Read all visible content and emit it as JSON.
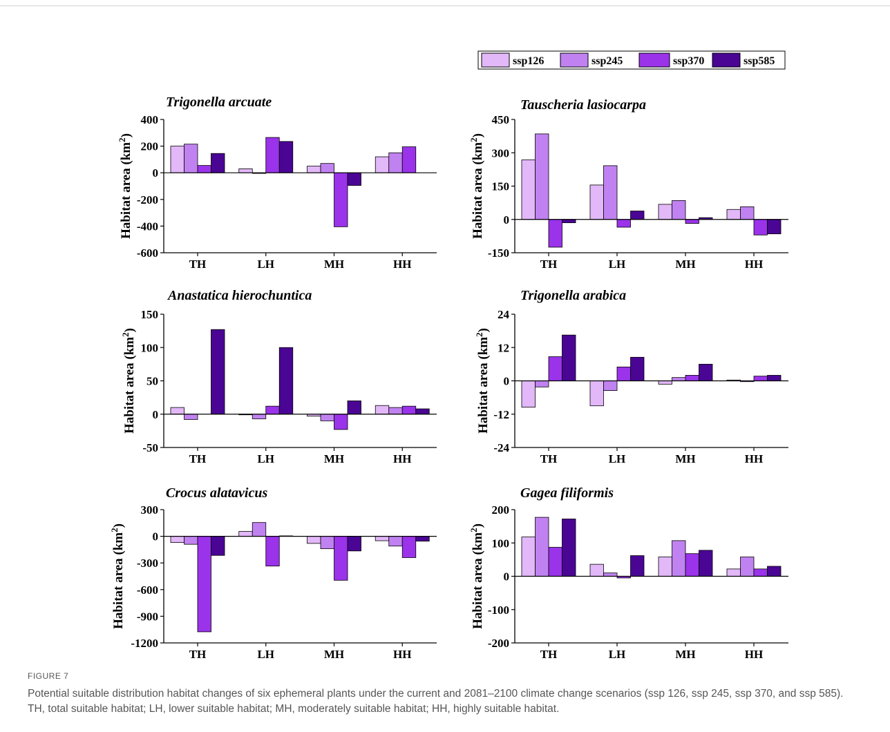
{
  "figure": {
    "label": "FIGURE 7",
    "caption": "Potential suitable distribution habitat changes of six ephemeral plants under the current and 2081–2100 climate change scenarios (ssp 126, ssp 245, ssp 370, and ssp 585). TH, total suitable habitat; LH, lower suitable habitat; MH, moderately suitable habitat; HH, highly suitable habitat."
  },
  "legend": [
    {
      "name": "ssp126",
      "color": "#E2B8F8"
    },
    {
      "name": "ssp245",
      "color": "#C082F0"
    },
    {
      "name": "ssp370",
      "color": "#9A33EA"
    },
    {
      "name": "ssp585",
      "color": "#4A0595"
    }
  ],
  "ylabel_main": "Habitat area (km",
  "ylabel_sup": "2",
  "ylabel_close": ")",
  "chart_data": [
    {
      "type": "bar",
      "title": "Trigonella arcuate",
      "categories": [
        "TH",
        "LH",
        "MH",
        "HH"
      ],
      "ylim": [
        -600,
        400
      ],
      "yticks": [
        -600,
        -400,
        -200,
        0,
        200,
        400
      ],
      "ytick_labels": [
        "-600",
        "-400",
        "-200",
        "0",
        "200",
        "400"
      ],
      "series": [
        {
          "name": "ssp126",
          "values": [
            200,
            30,
            50,
            120
          ]
        },
        {
          "name": "ssp245",
          "values": [
            215,
            -5,
            70,
            150
          ]
        },
        {
          "name": "ssp370",
          "values": [
            55,
            265,
            -405,
            195
          ]
        },
        {
          "name": "ssp585",
          "values": [
            145,
            235,
            -95,
            0
          ]
        }
      ]
    },
    {
      "type": "bar",
      "title": "Tauscheria lasiocarpa",
      "categories": [
        "TH",
        "LH",
        "MH",
        "HH"
      ],
      "ylim": [
        -150,
        450
      ],
      "yticks": [
        -150,
        0,
        150,
        300,
        450
      ],
      "ytick_labels": [
        "-150",
        "0",
        "150",
        "300",
        "450"
      ],
      "series": [
        {
          "name": "ssp126",
          "values": [
            268,
            155,
            68,
            45
          ]
        },
        {
          "name": "ssp245",
          "values": [
            385,
            242,
            85,
            57
          ]
        },
        {
          "name": "ssp370",
          "values": [
            -125,
            -35,
            -18,
            -70
          ]
        },
        {
          "name": "ssp585",
          "values": [
            -15,
            38,
            8,
            -65
          ]
        }
      ]
    },
    {
      "type": "bar",
      "title": "Anastatica hierochuntica",
      "categories": [
        "TH",
        "LH",
        "MH",
        "HH"
      ],
      "ylim": [
        -50,
        150
      ],
      "yticks": [
        -50,
        0,
        50,
        100,
        150
      ],
      "ytick_labels": [
        "-50",
        "0",
        "50",
        "100",
        "150"
      ],
      "series": [
        {
          "name": "ssp126",
          "values": [
            10,
            -1,
            -3,
            13
          ]
        },
        {
          "name": "ssp245",
          "values": [
            -8,
            -7,
            -10,
            10
          ]
        },
        {
          "name": "ssp370",
          "values": [
            0,
            12,
            -23,
            12
          ]
        },
        {
          "name": "ssp585",
          "values": [
            127,
            100,
            20,
            8
          ]
        }
      ]
    },
    {
      "type": "bar",
      "title": "Trigonella arabica",
      "categories": [
        "TH",
        "LH",
        "MH",
        "HH"
      ],
      "ylim": [
        -24,
        24
      ],
      "yticks": [
        -24,
        -12,
        0,
        12,
        24
      ],
      "ytick_labels": [
        "-24",
        "-12",
        "0",
        "12",
        "24"
      ],
      "series": [
        {
          "name": "ssp126",
          "values": [
            -9.5,
            -9,
            -1.2,
            0.3
          ]
        },
        {
          "name": "ssp245",
          "values": [
            -2.2,
            -3.5,
            1.2,
            -0.3
          ]
        },
        {
          "name": "ssp370",
          "values": [
            8.7,
            5,
            2,
            1.7
          ]
        },
        {
          "name": "ssp585",
          "values": [
            16.5,
            8.5,
            6,
            2
          ]
        }
      ]
    },
    {
      "type": "bar",
      "title": "Crocus alatavicus",
      "categories": [
        "TH",
        "LH",
        "MH",
        "HH"
      ],
      "ylim": [
        -1200,
        300
      ],
      "yticks": [
        -1200,
        -900,
        -600,
        -300,
        0,
        300
      ],
      "ytick_labels": [
        "-1200",
        "-900",
        "-600",
        "-300",
        "0",
        "300"
      ],
      "series": [
        {
          "name": "ssp126",
          "values": [
            -70,
            55,
            -80,
            -50
          ]
        },
        {
          "name": "ssp245",
          "values": [
            -90,
            155,
            -140,
            -110
          ]
        },
        {
          "name": "ssp370",
          "values": [
            -1075,
            -335,
            -495,
            -240
          ]
        },
        {
          "name": "ssp585",
          "values": [
            -215,
            5,
            -165,
            -55
          ]
        }
      ]
    },
    {
      "type": "bar",
      "title": "Gagea filiformis",
      "categories": [
        "TH",
        "LH",
        "MH",
        "HH"
      ],
      "ylim": [
        -200,
        200
      ],
      "yticks": [
        -200,
        -100,
        0,
        100,
        200
      ],
      "ytick_labels": [
        "-200",
        "-100",
        "0",
        "100",
        "200"
      ],
      "series": [
        {
          "name": "ssp126",
          "values": [
            118,
            36,
            58,
            22
          ]
        },
        {
          "name": "ssp245",
          "values": [
            177,
            10,
            107,
            58
          ]
        },
        {
          "name": "ssp370",
          "values": [
            87,
            -5,
            68,
            22
          ]
        },
        {
          "name": "ssp585",
          "values": [
            172,
            62,
            78,
            30
          ]
        }
      ]
    }
  ]
}
